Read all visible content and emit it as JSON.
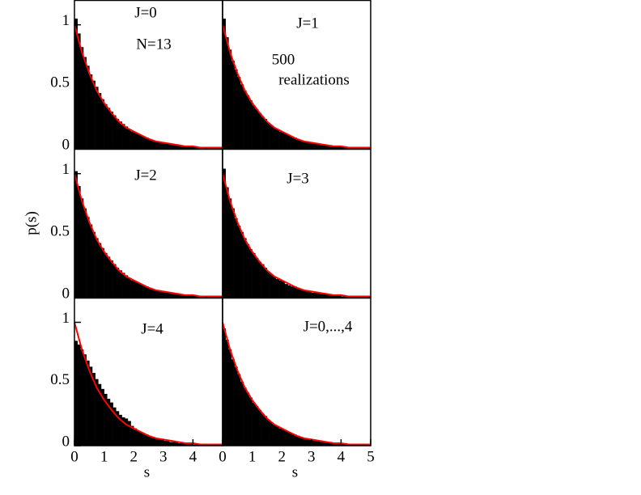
{
  "chart_data": [
    {
      "type": "histogram",
      "xlim": [
        0,
        5
      ],
      "ylim": [
        0,
        1.2
      ],
      "yticks": [
        0,
        0.5,
        1
      ],
      "color": "#000000",
      "annotations": [
        "J=0",
        "N=13"
      ],
      "bins": [
        0,
        0.1,
        0.2,
        0.3,
        0.4,
        0.5,
        0.6,
        0.7,
        0.8,
        0.9,
        1,
        1.1,
        1.2,
        1.3,
        1.4,
        1.5,
        1.6,
        1.7,
        1.8,
        1.9,
        2,
        2.1,
        2.2,
        2.3,
        2.4,
        2.5,
        2.6,
        2.7,
        2.8,
        2.9,
        3,
        3.1,
        3.2,
        3.3,
        3.4,
        3.5,
        3.6,
        3.7,
        3.8,
        3.9,
        4,
        4.1,
        4.2,
        4.3,
        4.4,
        4.5,
        4.6,
        4.7,
        4.8,
        4.9,
        5
      ],
      "values": [
        1.05,
        0.93,
        0.82,
        0.74,
        0.67,
        0.6,
        0.55,
        0.5,
        0.45,
        0.4,
        0.36,
        0.33,
        0.3,
        0.27,
        0.24,
        0.22,
        0.2,
        0.18,
        0.16,
        0.14,
        0.13,
        0.12,
        0.11,
        0.1,
        0.09,
        0.08,
        0.07,
        0.06,
        0.06,
        0.05,
        0.05,
        0.04,
        0.04,
        0.03,
        0.03,
        0.03,
        0.02,
        0.02,
        0.02,
        0.02,
        0.02,
        0.01,
        0.01,
        0.01,
        0.01,
        0.01,
        0.01,
        0.01,
        0.01,
        0.01
      ],
      "fit": {
        "color": "#ff0000",
        "x": [
          0,
          0.25,
          0.5,
          0.75,
          1,
          1.25,
          1.5,
          1.75,
          2,
          2.25,
          2.5,
          2.75,
          3,
          3.25,
          3.5,
          3.75,
          4,
          4.25,
          4.5,
          4.75,
          5
        ],
        "values": [
          1,
          0.78,
          0.61,
          0.47,
          0.37,
          0.29,
          0.22,
          0.17,
          0.14,
          0.11,
          0.08,
          0.06,
          0.05,
          0.04,
          0.03,
          0.02,
          0.02,
          0.01,
          0.01,
          0.01,
          0.01
        ]
      }
    },
    {
      "type": "histogram",
      "xlim": [
        0,
        5
      ],
      "ylim": [
        0,
        1.2
      ],
      "color": "#000000",
      "annotations": [
        "J=1",
        "500",
        "realizations"
      ],
      "bins": [
        0,
        0.1,
        0.2,
        0.3,
        0.4,
        0.5,
        0.6,
        0.7,
        0.8,
        0.9,
        1,
        1.1,
        1.2,
        1.3,
        1.4,
        1.5,
        1.6,
        1.7,
        1.8,
        1.9,
        2,
        2.1,
        2.2,
        2.3,
        2.4,
        2.5,
        2.6,
        2.7,
        2.8,
        2.9,
        3,
        3.1,
        3.2,
        3.3,
        3.4,
        3.5,
        3.6,
        3.7,
        3.8,
        3.9,
        4,
        4.1,
        4.2,
        4.3,
        4.4,
        4.5,
        4.6,
        4.7,
        4.8,
        4.9,
        5
      ],
      "values": [
        1.05,
        0.9,
        0.8,
        0.71,
        0.64,
        0.58,
        0.52,
        0.47,
        0.43,
        0.39,
        0.35,
        0.32,
        0.29,
        0.26,
        0.24,
        0.21,
        0.19,
        0.17,
        0.16,
        0.14,
        0.13,
        0.12,
        0.11,
        0.1,
        0.09,
        0.08,
        0.07,
        0.06,
        0.06,
        0.05,
        0.05,
        0.04,
        0.04,
        0.03,
        0.03,
        0.03,
        0.03,
        0.02,
        0.02,
        0.02,
        0.02,
        0.02,
        0.01,
        0.01,
        0.01,
        0.01,
        0.01,
        0.01,
        0.01,
        0.01
      ],
      "fit": {
        "color": "#ff0000",
        "x": [
          0,
          0.25,
          0.5,
          0.75,
          1,
          1.25,
          1.5,
          1.75,
          2,
          2.25,
          2.5,
          2.75,
          3,
          3.25,
          3.5,
          3.75,
          4,
          4.25,
          4.5,
          4.75,
          5
        ],
        "values": [
          1,
          0.78,
          0.61,
          0.47,
          0.37,
          0.29,
          0.22,
          0.17,
          0.14,
          0.11,
          0.08,
          0.06,
          0.05,
          0.04,
          0.03,
          0.02,
          0.02,
          0.01,
          0.01,
          0.01,
          0.01
        ]
      }
    },
    {
      "type": "histogram",
      "xlim": [
        0,
        5
      ],
      "ylim": [
        0,
        1.2
      ],
      "yticks": [
        0,
        0.5,
        1
      ],
      "color": "#000000",
      "ylabel": "p(s)",
      "annotations": [
        "J=2"
      ],
      "bins": [
        0,
        0.1,
        0.2,
        0.3,
        0.4,
        0.5,
        0.6,
        0.7,
        0.8,
        0.9,
        1,
        1.1,
        1.2,
        1.3,
        1.4,
        1.5,
        1.6,
        1.7,
        1.8,
        1.9,
        2,
        2.1,
        2.2,
        2.3,
        2.4,
        2.5,
        2.6,
        2.7,
        2.8,
        2.9,
        3,
        3.1,
        3.2,
        3.3,
        3.4,
        3.5,
        3.6,
        3.7,
        3.8,
        3.9,
        4,
        4.1,
        4.2,
        4.3,
        4.4,
        4.5,
        4.6,
        4.7,
        4.8,
        4.9,
        5
      ],
      "values": [
        1.02,
        0.9,
        0.8,
        0.72,
        0.65,
        0.59,
        0.53,
        0.48,
        0.44,
        0.4,
        0.36,
        0.33,
        0.3,
        0.27,
        0.24,
        0.22,
        0.2,
        0.18,
        0.16,
        0.14,
        0.13,
        0.12,
        0.11,
        0.1,
        0.09,
        0.08,
        0.07,
        0.06,
        0.06,
        0.05,
        0.05,
        0.04,
        0.04,
        0.03,
        0.03,
        0.03,
        0.02,
        0.02,
        0.02,
        0.02,
        0.02,
        0.01,
        0.01,
        0.01,
        0.01,
        0.01,
        0.01,
        0.01,
        0.01,
        0.01
      ],
      "fit": {
        "color": "#ff0000",
        "x": [
          0,
          0.25,
          0.5,
          0.75,
          1,
          1.25,
          1.5,
          1.75,
          2,
          2.25,
          2.5,
          2.75,
          3,
          3.25,
          3.5,
          3.75,
          4,
          4.25,
          4.5,
          4.75,
          5
        ],
        "values": [
          1,
          0.78,
          0.61,
          0.47,
          0.37,
          0.29,
          0.22,
          0.17,
          0.14,
          0.11,
          0.08,
          0.06,
          0.05,
          0.04,
          0.03,
          0.02,
          0.02,
          0.01,
          0.01,
          0.01,
          0.01
        ]
      }
    },
    {
      "type": "histogram",
      "xlim": [
        0,
        5
      ],
      "ylim": [
        0,
        1.2
      ],
      "color": "#000000",
      "annotations": [
        "J=3"
      ],
      "bins": [
        0,
        0.1,
        0.2,
        0.3,
        0.4,
        0.5,
        0.6,
        0.7,
        0.8,
        0.9,
        1,
        1.1,
        1.2,
        1.3,
        1.4,
        1.5,
        1.6,
        1.7,
        1.8,
        1.9,
        2,
        2.1,
        2.2,
        2.3,
        2.4,
        2.5,
        2.6,
        2.7,
        2.8,
        2.9,
        3,
        3.1,
        3.2,
        3.3,
        3.4,
        3.5,
        3.6,
        3.7,
        3.8,
        3.9,
        4,
        4.1,
        4.2,
        4.3,
        4.4,
        4.5,
        4.6,
        4.7,
        4.8,
        4.9,
        5
      ],
      "values": [
        1.04,
        0.89,
        0.8,
        0.72,
        0.64,
        0.58,
        0.53,
        0.48,
        0.43,
        0.39,
        0.36,
        0.32,
        0.29,
        0.27,
        0.24,
        0.21,
        0.19,
        0.17,
        0.15,
        0.14,
        0.13,
        0.11,
        0.1,
        0.09,
        0.09,
        0.08,
        0.07,
        0.06,
        0.05,
        0.05,
        0.04,
        0.04,
        0.04,
        0.03,
        0.03,
        0.03,
        0.02,
        0.02,
        0.02,
        0.02,
        0.01,
        0.01,
        0.01,
        0.01,
        0.01,
        0.01,
        0.01,
        0.01,
        0.01,
        0.01
      ],
      "fit": {
        "color": "#ff0000",
        "x": [
          0,
          0.25,
          0.5,
          0.75,
          1,
          1.25,
          1.5,
          1.75,
          2,
          2.25,
          2.5,
          2.75,
          3,
          3.25,
          3.5,
          3.75,
          4,
          4.25,
          4.5,
          4.75,
          5
        ],
        "values": [
          1,
          0.78,
          0.61,
          0.47,
          0.37,
          0.29,
          0.22,
          0.17,
          0.14,
          0.11,
          0.08,
          0.06,
          0.05,
          0.04,
          0.03,
          0.02,
          0.02,
          0.01,
          0.01,
          0.01,
          0.01
        ]
      }
    },
    {
      "type": "histogram",
      "xlim": [
        0,
        5
      ],
      "ylim": [
        0,
        1.2
      ],
      "yticks": [
        0,
        0.5,
        1
      ],
      "xticks": [
        0,
        1,
        2,
        3,
        4
      ],
      "color": "#000000",
      "xlabel": "s",
      "annotations": [
        "J=4"
      ],
      "bins": [
        0,
        0.1,
        0.2,
        0.3,
        0.4,
        0.5,
        0.6,
        0.7,
        0.8,
        0.9,
        1,
        1.1,
        1.2,
        1.3,
        1.4,
        1.5,
        1.6,
        1.7,
        1.8,
        1.9,
        2,
        2.1,
        2.2,
        2.3,
        2.4,
        2.5,
        2.6,
        2.7,
        2.8,
        2.9,
        3,
        3.1,
        3.2,
        3.3,
        3.4,
        3.5,
        3.6,
        3.7,
        3.8,
        3.9,
        4,
        4.1,
        4.2,
        4.3,
        4.4,
        4.5,
        4.6,
        4.7,
        4.8,
        4.9,
        5
      ],
      "values": [
        0.85,
        0.82,
        0.78,
        0.74,
        0.69,
        0.64,
        0.59,
        0.54,
        0.5,
        0.46,
        0.42,
        0.38,
        0.35,
        0.31,
        0.28,
        0.25,
        0.23,
        0.22,
        0.2,
        0.16,
        0.14,
        0.12,
        0.11,
        0.1,
        0.09,
        0.08,
        0.07,
        0.06,
        0.05,
        0.05,
        0.04,
        0.04,
        0.03,
        0.03,
        0.03,
        0.02,
        0.02,
        0.02,
        0.02,
        0.02,
        0.01,
        0.01,
        0.01,
        0.01,
        0.01,
        0.01,
        0.01,
        0.01,
        0.01,
        0.01
      ],
      "fit": {
        "color": "#ff0000",
        "x": [
          0,
          0.25,
          0.5,
          0.75,
          1,
          1.25,
          1.5,
          1.75,
          2,
          2.25,
          2.5,
          2.75,
          3,
          3.25,
          3.5,
          3.75,
          4,
          4.25,
          4.5,
          4.75,
          5
        ],
        "values": [
          1,
          0.78,
          0.61,
          0.47,
          0.37,
          0.29,
          0.22,
          0.17,
          0.14,
          0.11,
          0.08,
          0.06,
          0.05,
          0.04,
          0.03,
          0.02,
          0.02,
          0.01,
          0.01,
          0.01,
          0.01
        ]
      }
    },
    {
      "type": "histogram",
      "xlim": [
        0,
        5
      ],
      "ylim": [
        0,
        1.2
      ],
      "xticks": [
        0,
        1,
        2,
        3,
        4,
        5
      ],
      "color": "#000000",
      "xlabel": "s",
      "annotations": [
        "J=0,...,4"
      ],
      "bins": [
        0,
        0.1,
        0.2,
        0.3,
        0.4,
        0.5,
        0.6,
        0.7,
        0.8,
        0.9,
        1,
        1.1,
        1.2,
        1.3,
        1.4,
        1.5,
        1.6,
        1.7,
        1.8,
        1.9,
        2,
        2.1,
        2.2,
        2.3,
        2.4,
        2.5,
        2.6,
        2.7,
        2.8,
        2.9,
        3,
        3.1,
        3.2,
        3.3,
        3.4,
        3.5,
        3.6,
        3.7,
        3.8,
        3.9,
        4,
        4.1,
        4.2,
        4.3,
        4.4,
        4.5,
        4.6,
        4.7,
        4.8,
        4.9,
        5
      ],
      "values": [
        0.95,
        0.86,
        0.78,
        0.7,
        0.64,
        0.58,
        0.52,
        0.47,
        0.43,
        0.39,
        0.35,
        0.32,
        0.29,
        0.26,
        0.24,
        0.21,
        0.19,
        0.17,
        0.16,
        0.14,
        0.13,
        0.12,
        0.11,
        0.1,
        0.09,
        0.08,
        0.07,
        0.06,
        0.06,
        0.05,
        0.05,
        0.04,
        0.04,
        0.03,
        0.03,
        0.03,
        0.03,
        0.02,
        0.02,
        0.02,
        0.02,
        0.02,
        0.01,
        0.01,
        0.01,
        0.01,
        0.01,
        0.01,
        0.01,
        0.01
      ],
      "fit": {
        "color": "#ff0000",
        "x": [
          0,
          0.25,
          0.5,
          0.75,
          1,
          1.25,
          1.5,
          1.75,
          2,
          2.25,
          2.5,
          2.75,
          3,
          3.25,
          3.5,
          3.75,
          4,
          4.25,
          4.5,
          4.75,
          5
        ],
        "values": [
          1,
          0.78,
          0.61,
          0.47,
          0.37,
          0.29,
          0.22,
          0.17,
          0.14,
          0.11,
          0.08,
          0.06,
          0.05,
          0.04,
          0.03,
          0.02,
          0.02,
          0.01,
          0.01,
          0.01,
          0.01
        ]
      }
    }
  ]
}
